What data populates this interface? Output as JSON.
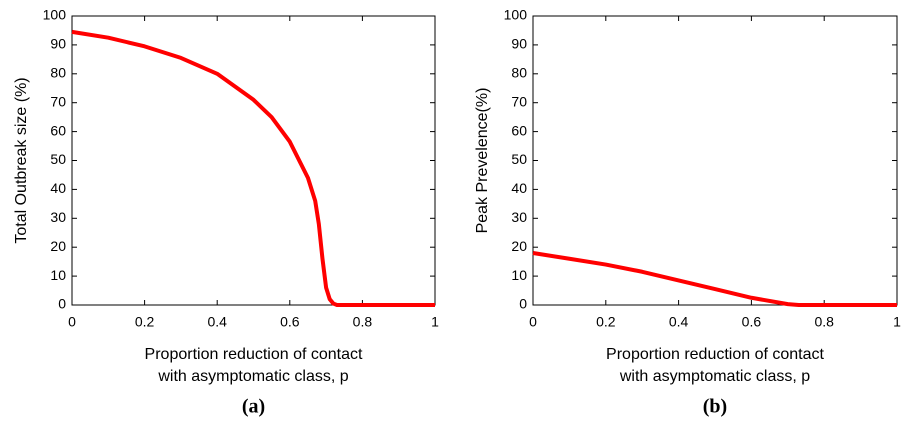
{
  "chart_data": [
    {
      "type": "line",
      "caption": "(a)",
      "ylabel": "Total Outbreak size (%)",
      "xlabel": [
        "Proportion reduction of contact",
        "with asymptomatic class, p"
      ],
      "x": [
        0,
        0.1,
        0.2,
        0.3,
        0.4,
        0.5,
        0.55,
        0.6,
        0.65,
        0.67,
        0.68,
        0.69,
        0.7,
        0.71,
        0.72,
        0.73,
        0.8,
        0.9,
        1
      ],
      "series": [
        {
          "color": "#ff0000",
          "values": [
            94.5,
            92.5,
            89.5,
            85.5,
            80,
            71,
            65,
            56.5,
            44,
            36,
            28,
            16,
            6,
            2,
            0.5,
            0,
            0,
            0,
            0
          ]
        }
      ],
      "xlim": [
        0,
        1
      ],
      "xticks": [
        0,
        0.2,
        0.4,
        0.6,
        0.8,
        1
      ],
      "ylim": [
        0,
        100
      ],
      "yticks": [
        0,
        10,
        20,
        30,
        40,
        50,
        60,
        70,
        80,
        90,
        100
      ]
    },
    {
      "type": "line",
      "caption": "(b)",
      "ylabel": "Peak Prevelence(%)",
      "xlabel": [
        "Proportion reduction of contact",
        "with asymptomatic class, p"
      ],
      "x": [
        0,
        0.1,
        0.2,
        0.3,
        0.4,
        0.5,
        0.6,
        0.7,
        0.73,
        0.8,
        0.9,
        1
      ],
      "series": [
        {
          "color": "#ff0000",
          "values": [
            18,
            16,
            14,
            11.5,
            8.5,
            5.5,
            2.5,
            0.3,
            0,
            0,
            0,
            0
          ]
        }
      ],
      "xlim": [
        0,
        1
      ],
      "xticks": [
        0,
        0.2,
        0.4,
        0.6,
        0.8,
        1
      ],
      "ylim": [
        0,
        100
      ],
      "yticks": [
        0,
        10,
        20,
        30,
        40,
        50,
        60,
        70,
        80,
        90,
        100
      ]
    }
  ]
}
